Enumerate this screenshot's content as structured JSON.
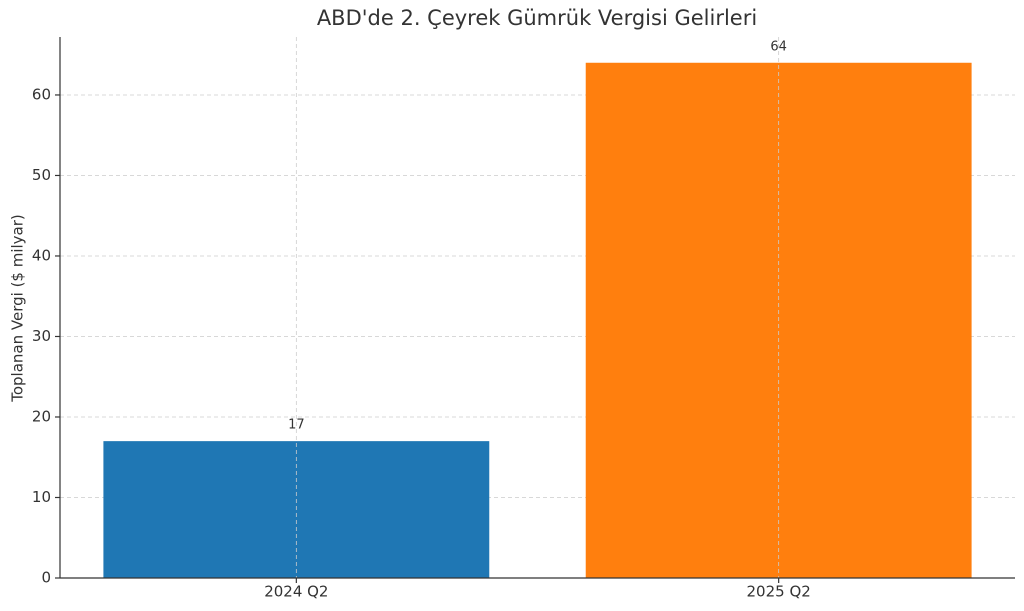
{
  "chart_data": {
    "type": "bar",
    "title": "ABD'de 2. Çeyrek Gümrük Vergisi Gelirleri",
    "y_label": "Toplanan Vergi ($ milyar)",
    "categories": [
      "2024 Q2",
      "2025 Q2"
    ],
    "values": [
      17,
      64
    ],
    "colors": [
      "#1f77b4",
      "#ff7f0e"
    ],
    "ylim": [
      0,
      67.2
    ],
    "yticks": [
      0,
      10,
      20,
      30,
      40,
      50,
      60
    ],
    "grid": true
  }
}
